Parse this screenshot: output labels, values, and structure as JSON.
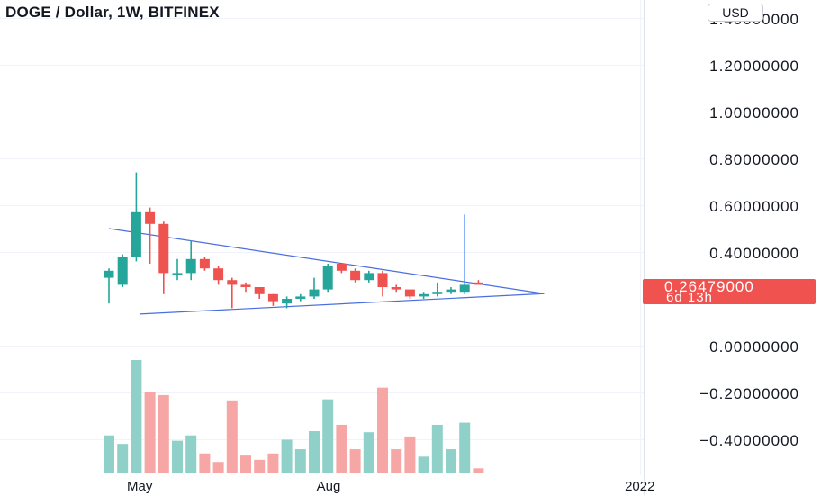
{
  "chart_data": {
    "type": "candlestick",
    "title": "DOGE / Dollar, 1W, BITFINEX",
    "currency": "USD",
    "y_ticks": [
      "1.40000000",
      "1.20000000",
      "1.00000000",
      "0.80000000",
      "0.60000000",
      "0.40000000",
      "0.00000000",
      "−0.20000000",
      "−0.40000000"
    ],
    "y_tick_values": [
      1.4,
      1.2,
      1.0,
      0.8,
      0.6,
      0.4,
      0.0,
      -0.2,
      -0.4
    ],
    "ylim": [
      -0.445,
      1.5
    ],
    "x_ticks": [
      "May",
      "Aug",
      "2022"
    ],
    "x_tick_index": [
      2.25,
      16.05,
      38.8
    ],
    "last_price": "0.26479000",
    "countdown": "6d 13h",
    "colors": {
      "up": "#26a69a",
      "down": "#ef5350",
      "volume_up": "#8fd1c8",
      "volume_down": "#f6a7a5",
      "trendline": "#4a6ee0",
      "price_line": "#ef5350"
    },
    "candles": [
      {
        "o": 0.29,
        "h": 0.33,
        "l": 0.18,
        "c": 0.32
      },
      {
        "o": 0.26,
        "h": 0.39,
        "l": 0.25,
        "c": 0.38
      },
      {
        "o": 0.38,
        "h": 0.74,
        "l": 0.36,
        "c": 0.57
      },
      {
        "o": 0.57,
        "h": 0.59,
        "l": 0.35,
        "c": 0.52
      },
      {
        "o": 0.52,
        "h": 0.53,
        "l": 0.22,
        "c": 0.31
      },
      {
        "o": 0.31,
        "h": 0.37,
        "l": 0.28,
        "c": 0.31
      },
      {
        "o": 0.31,
        "h": 0.45,
        "l": 0.28,
        "c": 0.37
      },
      {
        "o": 0.37,
        "h": 0.38,
        "l": 0.32,
        "c": 0.33
      },
      {
        "o": 0.33,
        "h": 0.34,
        "l": 0.26,
        "c": 0.28
      },
      {
        "o": 0.28,
        "h": 0.29,
        "l": 0.16,
        "c": 0.26
      },
      {
        "o": 0.26,
        "h": 0.27,
        "l": 0.23,
        "c": 0.25
      },
      {
        "o": 0.25,
        "h": 0.25,
        "l": 0.2,
        "c": 0.22
      },
      {
        "o": 0.22,
        "h": 0.22,
        "l": 0.17,
        "c": 0.19
      },
      {
        "o": 0.18,
        "h": 0.21,
        "l": 0.16,
        "c": 0.2
      },
      {
        "o": 0.2,
        "h": 0.22,
        "l": 0.19,
        "c": 0.21
      },
      {
        "o": 0.21,
        "h": 0.29,
        "l": 0.2,
        "c": 0.24
      },
      {
        "o": 0.24,
        "h": 0.35,
        "l": 0.23,
        "c": 0.34
      },
      {
        "o": 0.35,
        "h": 0.35,
        "l": 0.31,
        "c": 0.32
      },
      {
        "o": 0.32,
        "h": 0.33,
        "l": 0.27,
        "c": 0.28
      },
      {
        "o": 0.28,
        "h": 0.32,
        "l": 0.27,
        "c": 0.31
      },
      {
        "o": 0.31,
        "h": 0.32,
        "l": 0.21,
        "c": 0.25
      },
      {
        "o": 0.25,
        "h": 0.26,
        "l": 0.23,
        "c": 0.24
      },
      {
        "o": 0.24,
        "h": 0.24,
        "l": 0.2,
        "c": 0.21
      },
      {
        "o": 0.21,
        "h": 0.23,
        "l": 0.2,
        "c": 0.22
      },
      {
        "o": 0.22,
        "h": 0.27,
        "l": 0.21,
        "c": 0.23
      },
      {
        "o": 0.23,
        "h": 0.25,
        "l": 0.22,
        "c": 0.24
      },
      {
        "o": 0.23,
        "h": 0.56,
        "l": 0.22,
        "c": 0.26
      },
      {
        "o": 0.27,
        "h": 0.28,
        "l": 0.26,
        "c": 0.26
      }
    ],
    "volume_pct": [
      35,
      27,
      106,
      76,
      73,
      30,
      35,
      18,
      10,
      68,
      16,
      12,
      18,
      31,
      22,
      39,
      69,
      45,
      22,
      38,
      80,
      22,
      34,
      15,
      45,
      22,
      47,
      4
    ],
    "trendlines": [
      {
        "from": {
          "i": 0,
          "p": 0.5
        },
        "to": {
          "i": 31.8,
          "p": 0.222
        }
      },
      {
        "from": {
          "i": 2.25,
          "p": 0.135
        },
        "to": {
          "i": 31.8,
          "p": 0.222
        }
      }
    ]
  }
}
